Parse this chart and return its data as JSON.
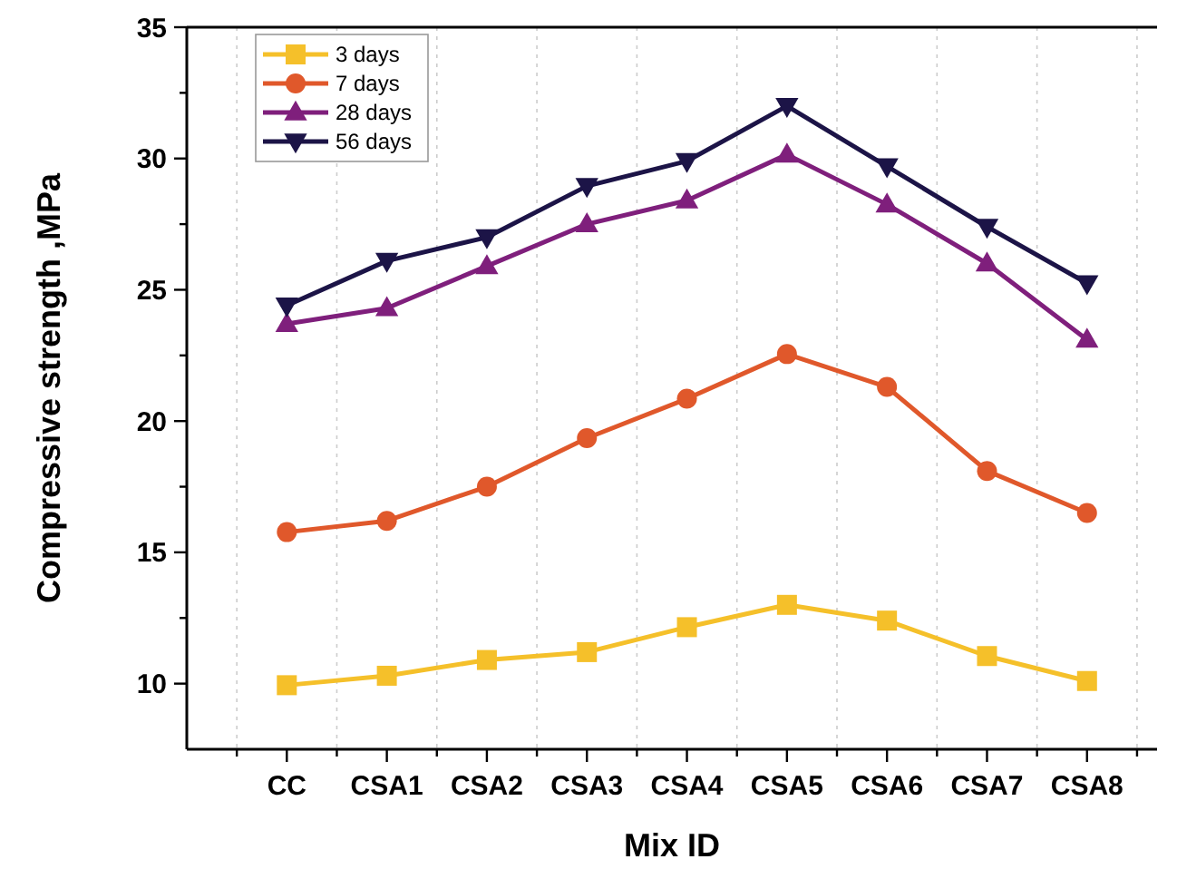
{
  "chart_data": {
    "type": "line",
    "xlabel": "Mix ID",
    "ylabel": "Compressive strength ,MPa",
    "categories": [
      "CC",
      "CSA1",
      "CSA2",
      "CSA3",
      "CSA4",
      "CSA5",
      "CSA6",
      "CSA7",
      "CSA8"
    ],
    "series": [
      {
        "name": "3 days",
        "color": "#f5c02a",
        "marker": "square",
        "values": [
          9.94,
          10.3,
          10.9,
          11.2,
          12.15,
          13.0,
          12.4,
          11.05,
          10.1
        ]
      },
      {
        "name": "7 days",
        "color": "#e0582b",
        "marker": "circle",
        "values": [
          15.77,
          16.2,
          17.5,
          19.35,
          20.85,
          22.55,
          21.3,
          18.1,
          16.5
        ]
      },
      {
        "name": "28 days",
        "color": "#7f1f7c",
        "marker": "triangle",
        "values": [
          23.7,
          24.3,
          25.9,
          27.5,
          28.4,
          30.15,
          28.25,
          26.0,
          23.1
        ]
      },
      {
        "name": "56 days",
        "color": "#1c1447",
        "marker": "triangle-down",
        "values": [
          24.4,
          26.1,
          27.0,
          28.95,
          29.9,
          32.0,
          29.7,
          27.4,
          25.25
        ]
      }
    ],
    "ylim": [
      7.5,
      35
    ],
    "yticks": [
      10,
      {
        "value": 12.5,
        "label": null
      },
      15,
      {
        "value": 17.5,
        "label": null
      },
      20,
      {
        "value": 22.5,
        "label": null
      },
      25,
      {
        "value": 27.5,
        "label": null
      },
      30,
      {
        "value": 32.5,
        "label": null
      },
      35
    ],
    "grid": "x",
    "legend": "top left",
    "line_style": "solid"
  }
}
